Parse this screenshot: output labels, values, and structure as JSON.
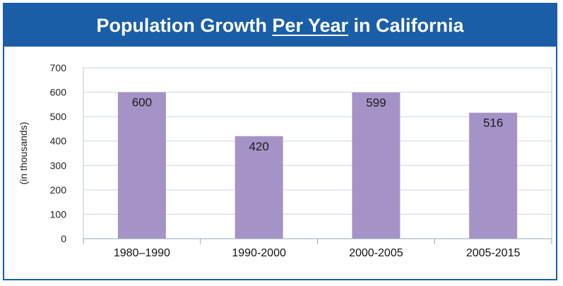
{
  "title": {
    "before": "Population Growth ",
    "emphasis": "Per Year",
    "after": " in California"
  },
  "colors": {
    "title_bar": "#1a5ea8",
    "bar": "#a593c8",
    "grid": "#c9d6e6"
  },
  "chart_data": {
    "type": "bar",
    "title": "Population Growth Per Year in California",
    "categories": [
      "1980–1990",
      "1990-2000",
      "2000-2005",
      "2005-2015"
    ],
    "values": [
      600,
      420,
      599,
      516
    ],
    "data_labels": [
      "600",
      "420",
      "599",
      "516"
    ],
    "ylabel": "(in thousands)",
    "xlabel": "",
    "ylim": [
      0,
      700
    ],
    "yticks": [
      0,
      100,
      200,
      300,
      400,
      500,
      600,
      700
    ],
    "ytick_labels": [
      "0",
      "100",
      "200",
      "300",
      "400",
      "500",
      "600",
      "700"
    ],
    "grid": true,
    "legend": "none"
  }
}
